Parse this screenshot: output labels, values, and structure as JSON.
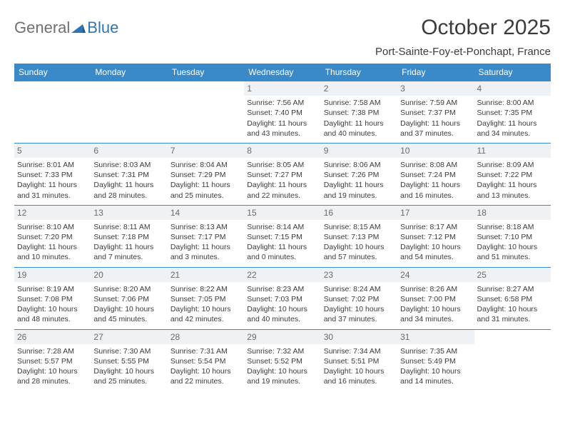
{
  "logo": {
    "general": "General",
    "blue": "Blue"
  },
  "title": "October 2025",
  "location": "Port-Sainte-Foy-et-Ponchapt, France",
  "colors": {
    "header_bg": "#3a8ac9",
    "header_text": "#ffffff",
    "daynum_bg": "#eef2f5",
    "daynum_text": "#6a6a6a",
    "body_text": "#3b3b3b",
    "logo_gray": "#6f6f6f",
    "logo_blue": "#2e75b6",
    "border": "#3a8ac9",
    "background": "#ffffff"
  },
  "typography": {
    "title_fontsize": 30,
    "location_fontsize": 15,
    "dayheader_fontsize": 12,
    "daynum_fontsize": 12,
    "cell_fontsize": 10.5
  },
  "day_headers": [
    "Sunday",
    "Monday",
    "Tuesday",
    "Wednesday",
    "Thursday",
    "Friday",
    "Saturday"
  ],
  "weeks": [
    [
      {
        "n": "",
        "sr": "",
        "ss": "",
        "dl": ""
      },
      {
        "n": "",
        "sr": "",
        "ss": "",
        "dl": ""
      },
      {
        "n": "",
        "sr": "",
        "ss": "",
        "dl": ""
      },
      {
        "n": "1",
        "sr": "Sunrise: 7:56 AM",
        "ss": "Sunset: 7:40 PM",
        "dl": "Daylight: 11 hours and 43 minutes."
      },
      {
        "n": "2",
        "sr": "Sunrise: 7:58 AM",
        "ss": "Sunset: 7:38 PM",
        "dl": "Daylight: 11 hours and 40 minutes."
      },
      {
        "n": "3",
        "sr": "Sunrise: 7:59 AM",
        "ss": "Sunset: 7:37 PM",
        "dl": "Daylight: 11 hours and 37 minutes."
      },
      {
        "n": "4",
        "sr": "Sunrise: 8:00 AM",
        "ss": "Sunset: 7:35 PM",
        "dl": "Daylight: 11 hours and 34 minutes."
      }
    ],
    [
      {
        "n": "5",
        "sr": "Sunrise: 8:01 AM",
        "ss": "Sunset: 7:33 PM",
        "dl": "Daylight: 11 hours and 31 minutes."
      },
      {
        "n": "6",
        "sr": "Sunrise: 8:03 AM",
        "ss": "Sunset: 7:31 PM",
        "dl": "Daylight: 11 hours and 28 minutes."
      },
      {
        "n": "7",
        "sr": "Sunrise: 8:04 AM",
        "ss": "Sunset: 7:29 PM",
        "dl": "Daylight: 11 hours and 25 minutes."
      },
      {
        "n": "8",
        "sr": "Sunrise: 8:05 AM",
        "ss": "Sunset: 7:27 PM",
        "dl": "Daylight: 11 hours and 22 minutes."
      },
      {
        "n": "9",
        "sr": "Sunrise: 8:06 AM",
        "ss": "Sunset: 7:26 PM",
        "dl": "Daylight: 11 hours and 19 minutes."
      },
      {
        "n": "10",
        "sr": "Sunrise: 8:08 AM",
        "ss": "Sunset: 7:24 PM",
        "dl": "Daylight: 11 hours and 16 minutes."
      },
      {
        "n": "11",
        "sr": "Sunrise: 8:09 AM",
        "ss": "Sunset: 7:22 PM",
        "dl": "Daylight: 11 hours and 13 minutes."
      }
    ],
    [
      {
        "n": "12",
        "sr": "Sunrise: 8:10 AM",
        "ss": "Sunset: 7:20 PM",
        "dl": "Daylight: 11 hours and 10 minutes."
      },
      {
        "n": "13",
        "sr": "Sunrise: 8:11 AM",
        "ss": "Sunset: 7:18 PM",
        "dl": "Daylight: 11 hours and 7 minutes."
      },
      {
        "n": "14",
        "sr": "Sunrise: 8:13 AM",
        "ss": "Sunset: 7:17 PM",
        "dl": "Daylight: 11 hours and 3 minutes."
      },
      {
        "n": "15",
        "sr": "Sunrise: 8:14 AM",
        "ss": "Sunset: 7:15 PM",
        "dl": "Daylight: 11 hours and 0 minutes."
      },
      {
        "n": "16",
        "sr": "Sunrise: 8:15 AM",
        "ss": "Sunset: 7:13 PM",
        "dl": "Daylight: 10 hours and 57 minutes."
      },
      {
        "n": "17",
        "sr": "Sunrise: 8:17 AM",
        "ss": "Sunset: 7:12 PM",
        "dl": "Daylight: 10 hours and 54 minutes."
      },
      {
        "n": "18",
        "sr": "Sunrise: 8:18 AM",
        "ss": "Sunset: 7:10 PM",
        "dl": "Daylight: 10 hours and 51 minutes."
      }
    ],
    [
      {
        "n": "19",
        "sr": "Sunrise: 8:19 AM",
        "ss": "Sunset: 7:08 PM",
        "dl": "Daylight: 10 hours and 48 minutes."
      },
      {
        "n": "20",
        "sr": "Sunrise: 8:20 AM",
        "ss": "Sunset: 7:06 PM",
        "dl": "Daylight: 10 hours and 45 minutes."
      },
      {
        "n": "21",
        "sr": "Sunrise: 8:22 AM",
        "ss": "Sunset: 7:05 PM",
        "dl": "Daylight: 10 hours and 42 minutes."
      },
      {
        "n": "22",
        "sr": "Sunrise: 8:23 AM",
        "ss": "Sunset: 7:03 PM",
        "dl": "Daylight: 10 hours and 40 minutes."
      },
      {
        "n": "23",
        "sr": "Sunrise: 8:24 AM",
        "ss": "Sunset: 7:02 PM",
        "dl": "Daylight: 10 hours and 37 minutes."
      },
      {
        "n": "24",
        "sr": "Sunrise: 8:26 AM",
        "ss": "Sunset: 7:00 PM",
        "dl": "Daylight: 10 hours and 34 minutes."
      },
      {
        "n": "25",
        "sr": "Sunrise: 8:27 AM",
        "ss": "Sunset: 6:58 PM",
        "dl": "Daylight: 10 hours and 31 minutes."
      }
    ],
    [
      {
        "n": "26",
        "sr": "Sunrise: 7:28 AM",
        "ss": "Sunset: 5:57 PM",
        "dl": "Daylight: 10 hours and 28 minutes."
      },
      {
        "n": "27",
        "sr": "Sunrise: 7:30 AM",
        "ss": "Sunset: 5:55 PM",
        "dl": "Daylight: 10 hours and 25 minutes."
      },
      {
        "n": "28",
        "sr": "Sunrise: 7:31 AM",
        "ss": "Sunset: 5:54 PM",
        "dl": "Daylight: 10 hours and 22 minutes."
      },
      {
        "n": "29",
        "sr": "Sunrise: 7:32 AM",
        "ss": "Sunset: 5:52 PM",
        "dl": "Daylight: 10 hours and 19 minutes."
      },
      {
        "n": "30",
        "sr": "Sunrise: 7:34 AM",
        "ss": "Sunset: 5:51 PM",
        "dl": "Daylight: 10 hours and 16 minutes."
      },
      {
        "n": "31",
        "sr": "Sunrise: 7:35 AM",
        "ss": "Sunset: 5:49 PM",
        "dl": "Daylight: 10 hours and 14 minutes."
      },
      {
        "n": "",
        "sr": "",
        "ss": "",
        "dl": ""
      }
    ]
  ]
}
